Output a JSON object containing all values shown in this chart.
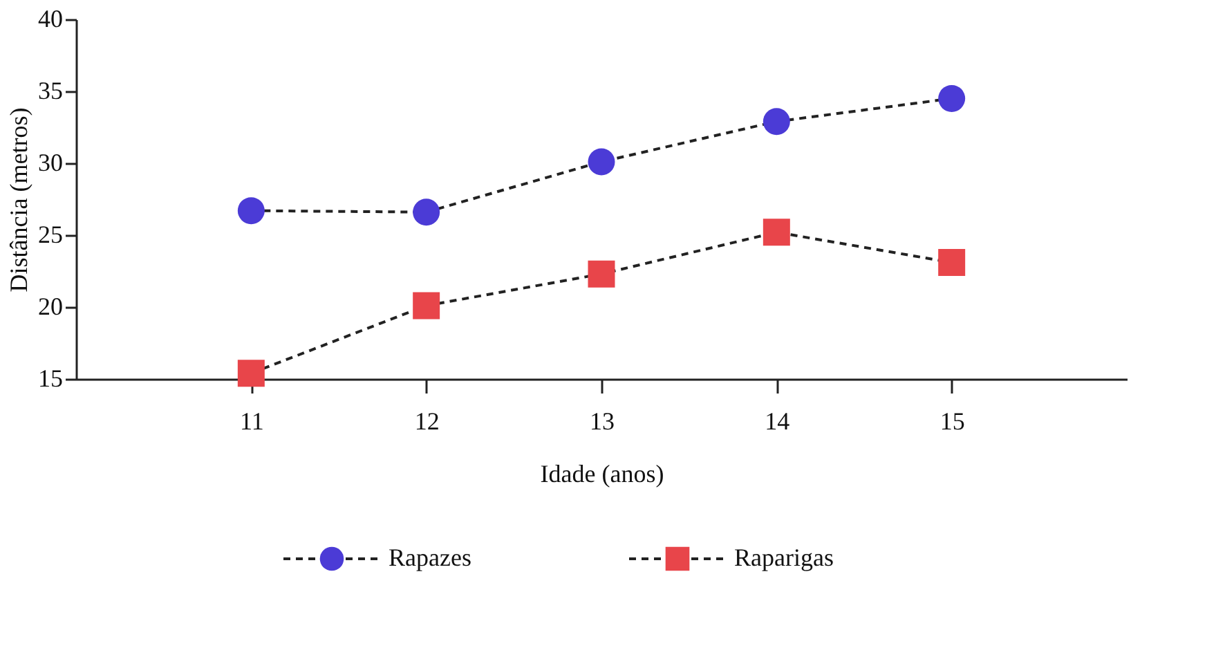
{
  "chart_data": {
    "type": "line",
    "xlabel": "Idade (anos)",
    "ylabel": "Distância (metros)",
    "x": [
      11,
      12,
      13,
      14,
      15
    ],
    "xlim": [
      10,
      16
    ],
    "xticks": [
      11,
      12,
      13,
      14,
      15
    ],
    "ylim": [
      15,
      40
    ],
    "yticks": [
      15,
      20,
      25,
      30,
      35,
      40
    ],
    "grid": false,
    "legend": "bottom",
    "line_style": "dashed",
    "series": [
      {
        "name": "Rapazes",
        "color": "#4b3bd6",
        "marker": "circle",
        "values": [
          26.7,
          26.6,
          30.1,
          32.9,
          34.5
        ]
      },
      {
        "name": "Raparigas",
        "color": "#e8454a",
        "marker": "square",
        "values": [
          15.4,
          20.1,
          22.3,
          25.2,
          23.1
        ]
      }
    ]
  }
}
